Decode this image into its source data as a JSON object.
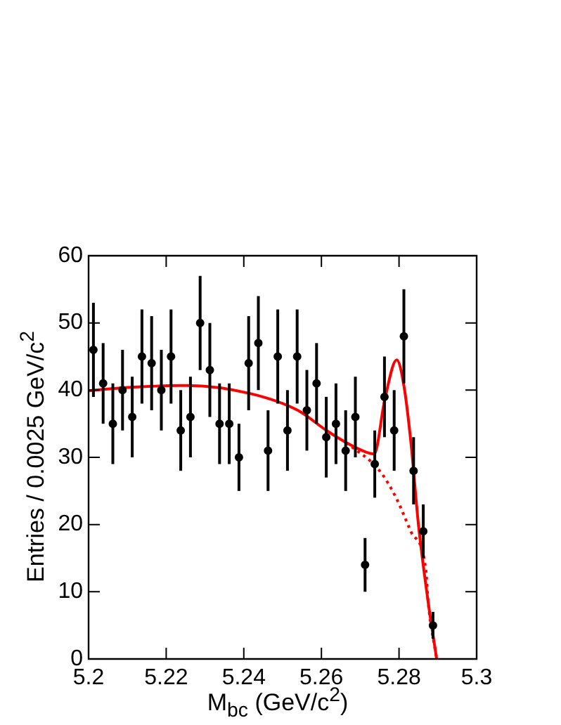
{
  "chart_data": {
    "type": "scatter",
    "xlabel": "M$_{bc}$ (GeV/c$^{2}$)",
    "ylabel": "Entries / 0.0025 GeV/c$^{2}$",
    "xlim": [
      5.2,
      5.3
    ],
    "xticks": [
      5.2,
      5.22,
      5.24,
      5.26,
      5.28,
      5.3
    ],
    "ylim": [
      0,
      60
    ],
    "yticks": [
      0,
      10,
      20,
      30,
      40,
      50,
      60
    ],
    "grid": false,
    "legend": false,
    "series": [
      {
        "type": "scatter",
        "color": "#000000",
        "marker": "circle",
        "x": [
          5.20125,
          5.20375,
          5.20625,
          5.20875,
          5.21125,
          5.21375,
          5.21625,
          5.21875,
          5.22125,
          5.22375,
          5.22625,
          5.22875,
          5.23125,
          5.23375,
          5.23625,
          5.23875,
          5.24125,
          5.24375,
          5.24625,
          5.24875,
          5.25125,
          5.25375,
          5.25625,
          5.25875,
          5.26125,
          5.26375,
          5.26625,
          5.26875,
          5.27125,
          5.27375,
          5.27625,
          5.27875,
          5.28125,
          5.28375,
          5.28625,
          5.28875
        ],
        "values": [
          46,
          41,
          35,
          40,
          36,
          45,
          44,
          40,
          45,
          34,
          36,
          50,
          43,
          35,
          35,
          30,
          44,
          47,
          31,
          45,
          34,
          45,
          37,
          41,
          33,
          35,
          31,
          36,
          14,
          29,
          39,
          34,
          48,
          28,
          19,
          5
        ],
        "errors": [
          7,
          6,
          6,
          6,
          6,
          7,
          7,
          6,
          7,
          6,
          6,
          7,
          7,
          6,
          6,
          5,
          7,
          7,
          6,
          7,
          6,
          7,
          6,
          6,
          6,
          6,
          6,
          6,
          4,
          5,
          6,
          6,
          7,
          5,
          4,
          2
        ]
      },
      {
        "type": "line",
        "color": "#ff0000",
        "marker": "none",
        "line_style": "solid",
        "x": [
          5.2,
          5.21,
          5.2255,
          5.2416,
          5.2539,
          5.2613,
          5.2664,
          5.2714,
          5.2736,
          5.2763,
          5.2794,
          5.2813,
          5.2831,
          5.285,
          5.2875,
          5.2897
        ],
        "values": [
          39.9,
          40.4,
          40.7,
          39.5,
          37,
          34,
          32.2,
          30.8,
          30.5,
          38.5,
          44.5,
          40.5,
          32,
          20,
          8.5,
          0
        ]
      },
      {
        "type": "line",
        "color": "#ff0000",
        "marker": "none",
        "line_style": "dotted",
        "x": [
          5.2664,
          5.275,
          5.2794,
          5.2831,
          5.2869,
          5.2875,
          5.2897
        ],
        "values": [
          32.2,
          28,
          23.8,
          18.9,
          13.3,
          8.5,
          0
        ]
      }
    ]
  }
}
